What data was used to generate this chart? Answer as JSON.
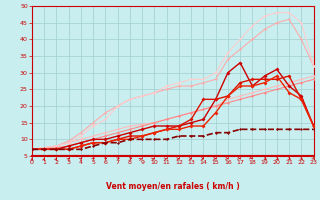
{
  "xlabel": "Vent moyen/en rafales ( km/h )",
  "xlim": [
    0,
    23
  ],
  "ylim": [
    5,
    50
  ],
  "yticks": [
    5,
    10,
    15,
    20,
    25,
    30,
    35,
    40,
    45,
    50
  ],
  "xticks": [
    0,
    1,
    2,
    3,
    4,
    5,
    6,
    7,
    8,
    9,
    10,
    11,
    12,
    13,
    14,
    15,
    16,
    17,
    18,
    19,
    20,
    21,
    22,
    23
  ],
  "bg_color": "#c8eef0",
  "grid_color": "#a0cece",
  "xlabel_color": "#cc0000",
  "tick_color": "#cc0000",
  "series": [
    {
      "x": [
        0,
        1,
        2,
        3,
        4,
        5,
        6,
        7,
        8,
        9,
        10,
        11,
        12,
        13,
        14,
        15,
        16,
        17,
        18,
        19,
        20,
        21,
        22,
        23
      ],
      "y": [
        7,
        7.5,
        8,
        9,
        10,
        11,
        12,
        13,
        14,
        14.5,
        15,
        16,
        17,
        18,
        19,
        20,
        22,
        23,
        24,
        25,
        26,
        27,
        28,
        29
      ],
      "color": "#ffbbbb",
      "marker": "D",
      "ms": 1.5,
      "lw": 0.8
    },
    {
      "x": [
        0,
        1,
        2,
        3,
        4,
        5,
        6,
        7,
        8,
        9,
        10,
        11,
        12,
        13,
        14,
        15,
        16,
        17,
        18,
        19,
        20,
        21,
        22,
        23
      ],
      "y": [
        7,
        7.5,
        8,
        9.5,
        12,
        15,
        18,
        20,
        22,
        23,
        24,
        25,
        26,
        26,
        27,
        28,
        34,
        37,
        40,
        43,
        45,
        46,
        40,
        32
      ],
      "color": "#ffaaaa",
      "marker": "D",
      "ms": 1.5,
      "lw": 0.8
    },
    {
      "x": [
        0,
        1,
        2,
        3,
        4,
        5,
        6,
        7,
        8,
        9,
        10,
        11,
        12,
        13,
        14,
        15,
        16,
        17,
        18,
        19,
        20,
        21,
        22,
        23
      ],
      "y": [
        7,
        7.5,
        8,
        9,
        11,
        14,
        16,
        20,
        22,
        23,
        24,
        26,
        27,
        28,
        28,
        30,
        36,
        40,
        44,
        47,
        48,
        48,
        45,
        32
      ],
      "color": "#ffcccc",
      "marker": "D",
      "ms": 1.5,
      "lw": 0.8
    },
    {
      "x": [
        0,
        1,
        2,
        3,
        4,
        5,
        6,
        7,
        8,
        9,
        10,
        11,
        12,
        13,
        14,
        15,
        16,
        17,
        18,
        19,
        20,
        21,
        22,
        23
      ],
      "y": [
        7,
        7.2,
        7.5,
        8,
        9,
        10,
        11,
        12,
        13,
        14,
        15,
        16,
        17,
        18,
        19,
        20,
        21,
        22,
        23,
        24,
        25,
        26,
        27,
        28
      ],
      "color": "#ff8888",
      "marker": "D",
      "ms": 1.5,
      "lw": 0.8
    },
    {
      "x": [
        0,
        1,
        2,
        3,
        4,
        5,
        6,
        7,
        8,
        9,
        10,
        11,
        12,
        13,
        14,
        15,
        16,
        17,
        18,
        19,
        20,
        21,
        22,
        23
      ],
      "y": [
        7,
        7,
        7,
        8,
        9,
        10,
        10,
        11,
        12,
        13,
        14,
        14,
        14,
        15,
        16,
        22,
        30,
        33,
        26,
        29,
        31,
        26,
        23,
        14
      ],
      "color": "#cc0000",
      "marker": "D",
      "ms": 2.0,
      "lw": 1.0
    },
    {
      "x": [
        0,
        1,
        2,
        3,
        4,
        5,
        6,
        7,
        8,
        9,
        10,
        11,
        12,
        13,
        14,
        15,
        16,
        17,
        18,
        19,
        20,
        21,
        22,
        23
      ],
      "y": [
        7,
        7,
        7,
        7,
        8,
        9,
        9,
        10,
        11,
        11,
        12,
        13,
        14,
        16,
        22,
        22,
        23,
        27,
        28,
        28,
        28,
        29,
        22,
        14
      ],
      "color": "#dd1100",
      "marker": "D",
      "ms": 2.0,
      "lw": 1.0
    },
    {
      "x": [
        0,
        1,
        2,
        3,
        4,
        5,
        6,
        7,
        8,
        9,
        10,
        11,
        12,
        13,
        14,
        15,
        16,
        17,
        18,
        19,
        20,
        21,
        22,
        23
      ],
      "y": [
        7,
        7,
        7,
        7,
        8,
        9,
        9,
        10,
        10,
        11,
        12,
        13,
        13,
        14,
        14,
        18,
        23,
        26,
        26,
        27,
        29,
        24,
        22,
        14
      ],
      "color": "#ee2200",
      "marker": "D",
      "ms": 2.0,
      "lw": 1.0
    },
    {
      "x": [
        0,
        1,
        2,
        3,
        4,
        5,
        6,
        7,
        8,
        9,
        10,
        11,
        12,
        13,
        14,
        15,
        16,
        17,
        18,
        19,
        20,
        21,
        22,
        23
      ],
      "y": [
        7,
        7,
        7,
        7,
        7,
        8,
        9,
        9,
        10,
        10,
        10,
        10,
        11,
        11,
        11,
        12,
        12,
        13,
        13,
        13,
        13,
        13,
        13,
        13
      ],
      "color": "#880000",
      "marker": "D",
      "ms": 1.5,
      "lw": 1.2,
      "linestyle": "--"
    }
  ],
  "arrow_angles_deg": [
    90,
    85,
    80,
    75,
    70,
    65,
    60,
    55,
    50,
    45,
    40,
    30,
    20,
    10,
    355,
    345,
    335,
    325,
    315,
    310,
    305,
    300,
    295,
    290
  ],
  "wind_y_data": 4.2,
  "arrow_color": "#cc0000",
  "bottom_line_color": "#cc0000"
}
